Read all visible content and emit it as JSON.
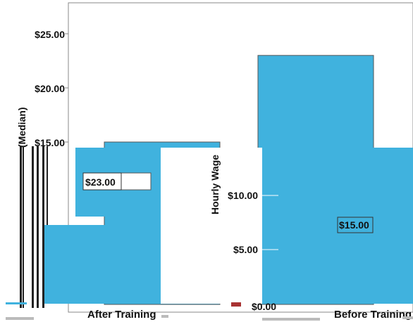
{
  "chart_data": {
    "type": "bar",
    "ylabel": "Hourly Wage (Median)",
    "ylabel_visible": [
      "Hourly Wage",
      "(Median)"
    ],
    "categories": [
      "Before Training",
      "After Training"
    ],
    "values": [
      15.0,
      23.0
    ],
    "data_labels": [
      "$15.00",
      "$23.00"
    ],
    "yticks": [
      "$0.00",
      "$5.00",
      "$10.00",
      "$15.00",
      "$20.00",
      "$25.00"
    ],
    "ylim": [
      0,
      27.5
    ],
    "grid": false,
    "colors": {
      "bar": "#40b2de",
      "bar_outline": "#555555",
      "axis": "#888888"
    }
  }
}
